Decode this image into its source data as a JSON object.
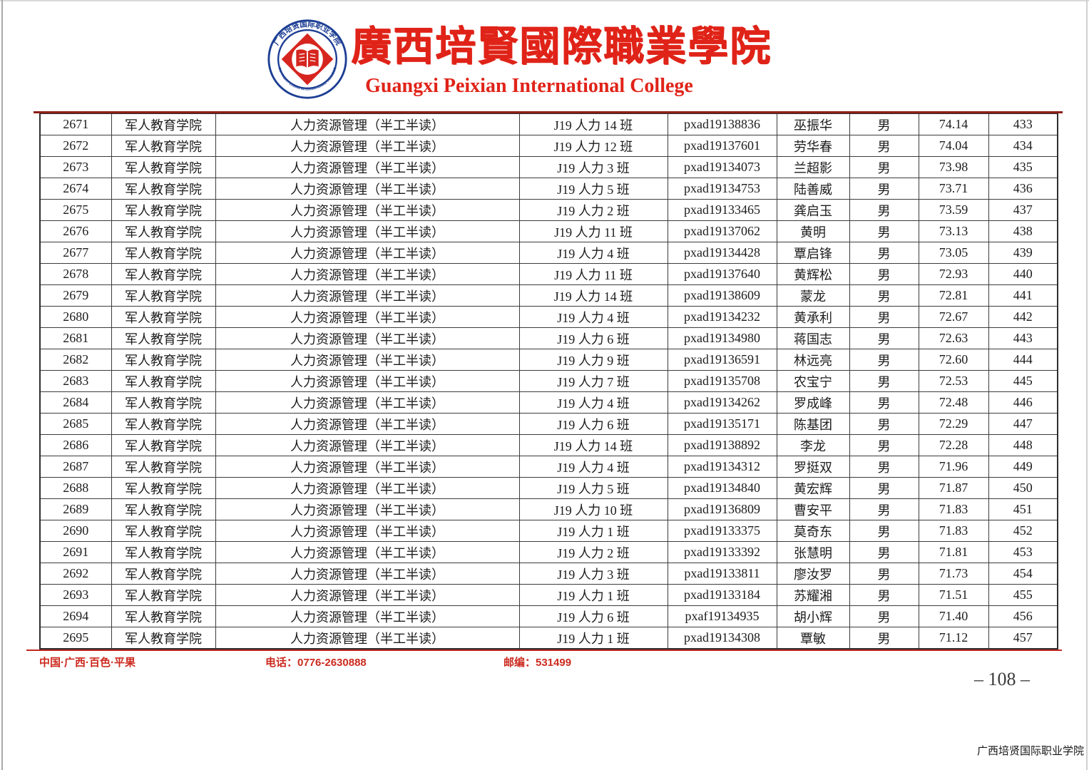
{
  "header": {
    "title_zh": "廣西培賢國際職業學院",
    "title_en": "Guangxi Peixian International College",
    "brand_red": "#e02318",
    "ring_blue": "#1d3f94",
    "logo": {
      "ring_text_zh": "广西培贤国际职业学院",
      "ring_text_en": "GUANGXI PEIXIAN INTERNATIONAL COLLEGE",
      "glyph": "open-book"
    }
  },
  "table": {
    "column_names": [
      "serial-number",
      "college",
      "major",
      "class-name",
      "student-id",
      "student-name",
      "gender",
      "score",
      "rank"
    ],
    "rows": [
      [
        "2671",
        "军人教育学院",
        "人力资源管理（半工半读）",
        "J19 人力 14 班",
        "pxad19138836",
        "巫振华",
        "男",
        "74.14",
        "433"
      ],
      [
        "2672",
        "军人教育学院",
        "人力资源管理（半工半读）",
        "J19 人力 12 班",
        "pxad19137601",
        "劳华春",
        "男",
        "74.04",
        "434"
      ],
      [
        "2673",
        "军人教育学院",
        "人力资源管理（半工半读）",
        "J19 人力 3 班",
        "pxad19134073",
        "兰超影",
        "男",
        "73.98",
        "435"
      ],
      [
        "2674",
        "军人教育学院",
        "人力资源管理（半工半读）",
        "J19 人力 5 班",
        "pxad19134753",
        "陆善威",
        "男",
        "73.71",
        "436"
      ],
      [
        "2675",
        "军人教育学院",
        "人力资源管理（半工半读）",
        "J19 人力 2 班",
        "pxad19133465",
        "龚启玉",
        "男",
        "73.59",
        "437"
      ],
      [
        "2676",
        "军人教育学院",
        "人力资源管理（半工半读）",
        "J19 人力 11 班",
        "pxad19137062",
        "黄明",
        "男",
        "73.13",
        "438"
      ],
      [
        "2677",
        "军人教育学院",
        "人力资源管理（半工半读）",
        "J19 人力 4 班",
        "pxad19134428",
        "覃启锋",
        "男",
        "73.05",
        "439"
      ],
      [
        "2678",
        "军人教育学院",
        "人力资源管理（半工半读）",
        "J19 人力 11 班",
        "pxad19137640",
        "黄辉松",
        "男",
        "72.93",
        "440"
      ],
      [
        "2679",
        "军人教育学院",
        "人力资源管理（半工半读）",
        "J19 人力 14 班",
        "pxad19138609",
        "蒙龙",
        "男",
        "72.81",
        "441"
      ],
      [
        "2680",
        "军人教育学院",
        "人力资源管理（半工半读）",
        "J19 人力 4 班",
        "pxad19134232",
        "黄承利",
        "男",
        "72.67",
        "442"
      ],
      [
        "2681",
        "军人教育学院",
        "人力资源管理（半工半读）",
        "J19 人力 6 班",
        "pxad19134980",
        "蒋国志",
        "男",
        "72.63",
        "443"
      ],
      [
        "2682",
        "军人教育学院",
        "人力资源管理（半工半读）",
        "J19 人力 9 班",
        "pxad19136591",
        "林远亮",
        "男",
        "72.60",
        "444"
      ],
      [
        "2683",
        "军人教育学院",
        "人力资源管理（半工半读）",
        "J19 人力 7 班",
        "pxad19135708",
        "农宝宁",
        "男",
        "72.53",
        "445"
      ],
      [
        "2684",
        "军人教育学院",
        "人力资源管理（半工半读）",
        "J19 人力 4 班",
        "pxad19134262",
        "罗成峰",
        "男",
        "72.48",
        "446"
      ],
      [
        "2685",
        "军人教育学院",
        "人力资源管理（半工半读）",
        "J19 人力 6 班",
        "pxad19135171",
        "陈基团",
        "男",
        "72.29",
        "447"
      ],
      [
        "2686",
        "军人教育学院",
        "人力资源管理（半工半读）",
        "J19 人力 14 班",
        "pxad19138892",
        "李龙",
        "男",
        "72.28",
        "448"
      ],
      [
        "2687",
        "军人教育学院",
        "人力资源管理（半工半读）",
        "J19 人力 4 班",
        "pxad19134312",
        "罗挺双",
        "男",
        "71.96",
        "449"
      ],
      [
        "2688",
        "军人教育学院",
        "人力资源管理（半工半读）",
        "J19 人力 5 班",
        "pxad19134840",
        "黄宏辉",
        "男",
        "71.87",
        "450"
      ],
      [
        "2689",
        "军人教育学院",
        "人力资源管理（半工半读）",
        "J19 人力 10 班",
        "pxad19136809",
        "曹安平",
        "男",
        "71.83",
        "451"
      ],
      [
        "2690",
        "军人教育学院",
        "人力资源管理（半工半读）",
        "J19 人力 1 班",
        "pxad19133375",
        "莫奇东",
        "男",
        "71.83",
        "452"
      ],
      [
        "2691",
        "军人教育学院",
        "人力资源管理（半工半读）",
        "J19 人力 2 班",
        "pxad19133392",
        "张慧明",
        "男",
        "71.81",
        "453"
      ],
      [
        "2692",
        "军人教育学院",
        "人力资源管理（半工半读）",
        "J19 人力 3 班",
        "pxad19133811",
        "廖汝罗",
        "男",
        "71.73",
        "454"
      ],
      [
        "2693",
        "军人教育学院",
        "人力资源管理（半工半读）",
        "J19 人力 1 班",
        "pxad19133184",
        "苏耀湘",
        "男",
        "71.51",
        "455"
      ],
      [
        "2694",
        "军人教育学院",
        "人力资源管理（半工半读）",
        "J19 人力 6 班",
        "pxaf19134935",
        "胡小辉",
        "男",
        "71.40",
        "456"
      ],
      [
        "2695",
        "军人教育学院",
        "人力资源管理（半工半读）",
        "J19 人力 1 班",
        "pxad19134308",
        "覃敏",
        "男",
        "71.12",
        "457"
      ]
    ]
  },
  "footer": {
    "address": "中国·广西·百色·平果",
    "phone": "电话：0776-2630888",
    "postcode": "邮编：531499",
    "page_number": "– 108 –",
    "corner_text": "广西培贤国际职业学院"
  }
}
